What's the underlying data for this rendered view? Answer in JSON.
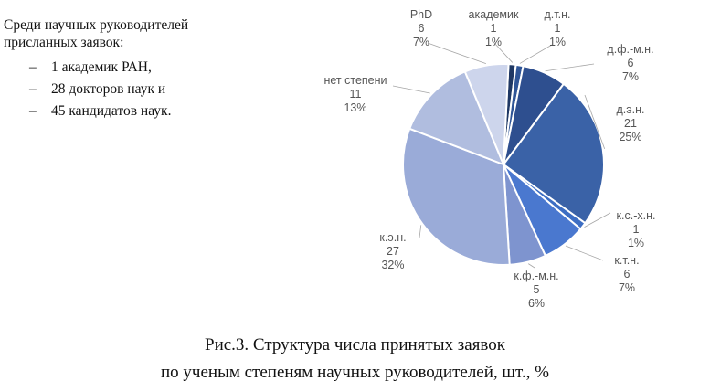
{
  "intro": {
    "heading": "Среди научных руководителей\nприсланных заявок:",
    "items": [
      {
        "bullet": "–",
        "text": "1 академик РАН,"
      },
      {
        "bullet": "–",
        "text": "28 докторов наук и"
      },
      {
        "bullet": "–",
        "text": "45 кандидатов наук."
      }
    ]
  },
  "caption": {
    "line1": "Рис.3. Структура числа принятых заявок",
    "line2": "по ученым степеням научных руководителей, шт., %"
  },
  "chart_data": {
    "type": "pie",
    "title": "",
    "slices": [
      {
        "label": "академик",
        "value": 1,
        "percent": "1%",
        "color": "#1f3864"
      },
      {
        "label": "д.т.н.",
        "value": 1,
        "percent": "1%",
        "color": "#2f5597"
      },
      {
        "label": "д.ф.-м.н.",
        "value": 6,
        "percent": "7%",
        "color": "#2e4f8f"
      },
      {
        "label": "д.э.н.",
        "value": 21,
        "percent": "25%",
        "color": "#3a62a7"
      },
      {
        "label": "к.с.-х.н.",
        "value": 1,
        "percent": "1%",
        "color": "#3d6ec3"
      },
      {
        "label": "к.т.н.",
        "value": 6,
        "percent": "7%",
        "color": "#4a78cf"
      },
      {
        "label": "к.ф.-м.н.",
        "value": 5,
        "percent": "6%",
        "color": "#7e94cf"
      },
      {
        "label": "к.э.н.",
        "value": 27,
        "percent": "32%",
        "color": "#9aabd8"
      },
      {
        "label": "нет степени",
        "value": 11,
        "percent": "13%",
        "color": "#b0bddf"
      },
      {
        "label": "PhD",
        "value": 6,
        "percent": "7%",
        "color": "#cdd5ec"
      }
    ],
    "label_color": "#595959",
    "leader_color": "#a6a6a6"
  }
}
